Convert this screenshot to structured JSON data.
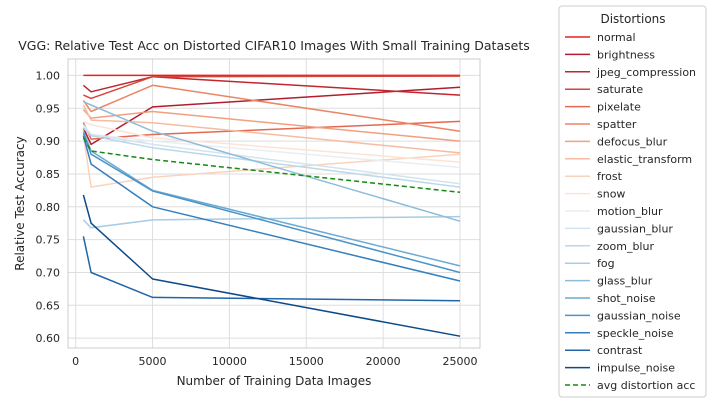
{
  "chart_data": {
    "type": "line",
    "title": "VGG: Relative Test Acc on Distorted CIFAR10 Images With Small Training Datasets",
    "xlabel": "Number of Training Data Images",
    "ylabel": "Relative Test Accuracy",
    "xlim": [
      -500,
      26300
    ],
    "ylim": [
      0.585,
      1.025
    ],
    "xticks": [
      0,
      5000,
      10000,
      15000,
      20000,
      25000
    ],
    "xtick_labels": [
      "0",
      "5000",
      "10000",
      "15000",
      "20000",
      "25000"
    ],
    "yticks": [
      0.6,
      0.65,
      0.7,
      0.75,
      0.8,
      0.85,
      0.9,
      0.95,
      1.0
    ],
    "ytick_labels": [
      "0.60",
      "0.65",
      "0.70",
      "0.75",
      "0.80",
      "0.85",
      "0.90",
      "0.95",
      "1.00"
    ],
    "grid": true,
    "legend_title": "Distortions",
    "legend_position": "outside-right",
    "x": [
      500,
      1000,
      5000,
      25000
    ],
    "series": [
      {
        "name": "normal",
        "color": "#e8201e",
        "values": [
          1.0,
          1.0,
          1.0,
          1.0
        ]
      },
      {
        "name": "brightness",
        "color": "#b11d2f",
        "values": [
          0.92,
          0.895,
          0.952,
          0.982
        ]
      },
      {
        "name": "jpeg_compression",
        "color": "#c0272d",
        "values": [
          0.985,
          0.975,
          0.998,
          0.97
        ]
      },
      {
        "name": "saturate",
        "color": "#d6453c",
        "values": [
          0.97,
          0.965,
          0.998,
          0.999
        ]
      },
      {
        "name": "pixelate",
        "color": "#e26952",
        "values": [
          0.928,
          0.903,
          0.91,
          0.93
        ]
      },
      {
        "name": "spatter",
        "color": "#ec8565",
        "values": [
          0.962,
          0.945,
          0.985,
          0.915
        ]
      },
      {
        "name": "defocus_blur",
        "color": "#f2a07f",
        "values": [
          0.948,
          0.935,
          0.945,
          0.9
        ]
      },
      {
        "name": "elastic_transform",
        "color": "#f6bba0",
        "values": [
          0.955,
          0.932,
          0.928,
          0.882
        ]
      },
      {
        "name": "frost",
        "color": "#fad3bd",
        "values": [
          0.91,
          0.83,
          0.845,
          0.88
        ]
      },
      {
        "name": "snow",
        "color": "#fbe3d6",
        "values": [
          0.93,
          0.925,
          0.905,
          0.868
        ]
      },
      {
        "name": "motion_blur",
        "color": "#e9eef2",
        "values": [
          0.922,
          0.91,
          0.9,
          0.86
        ]
      },
      {
        "name": "gaussian_blur",
        "color": "#d2e4ef",
        "values": [
          0.925,
          0.91,
          0.895,
          0.835
        ]
      },
      {
        "name": "zoom_blur",
        "color": "#bcd7e8",
        "values": [
          0.92,
          0.908,
          0.89,
          0.83
        ]
      },
      {
        "name": "fog",
        "color": "#a8cce2",
        "values": [
          0.78,
          0.768,
          0.78,
          0.785
        ]
      },
      {
        "name": "glass_blur",
        "color": "#8dbcda",
        "values": [
          0.96,
          0.955,
          0.915,
          0.778
        ]
      },
      {
        "name": "shot_noise",
        "color": "#6aaad3",
        "values": [
          0.915,
          0.885,
          0.825,
          0.71
        ]
      },
      {
        "name": "gaussian_noise",
        "color": "#4a94c8",
        "values": [
          0.912,
          0.88,
          0.824,
          0.7
        ]
      },
      {
        "name": "speckle_noise",
        "color": "#357fbc",
        "values": [
          0.908,
          0.865,
          0.8,
          0.687
        ]
      },
      {
        "name": "contrast",
        "color": "#2165a8",
        "values": [
          0.755,
          0.7,
          0.662,
          0.657
        ]
      },
      {
        "name": "impulse_noise",
        "color": "#0e4a88",
        "values": [
          0.818,
          0.775,
          0.69,
          0.603
        ]
      },
      {
        "name": "avg distortion acc",
        "color": "#138a13",
        "dashed": true,
        "values": [
          0.905,
          0.885,
          0.872,
          0.822
        ]
      }
    ]
  }
}
